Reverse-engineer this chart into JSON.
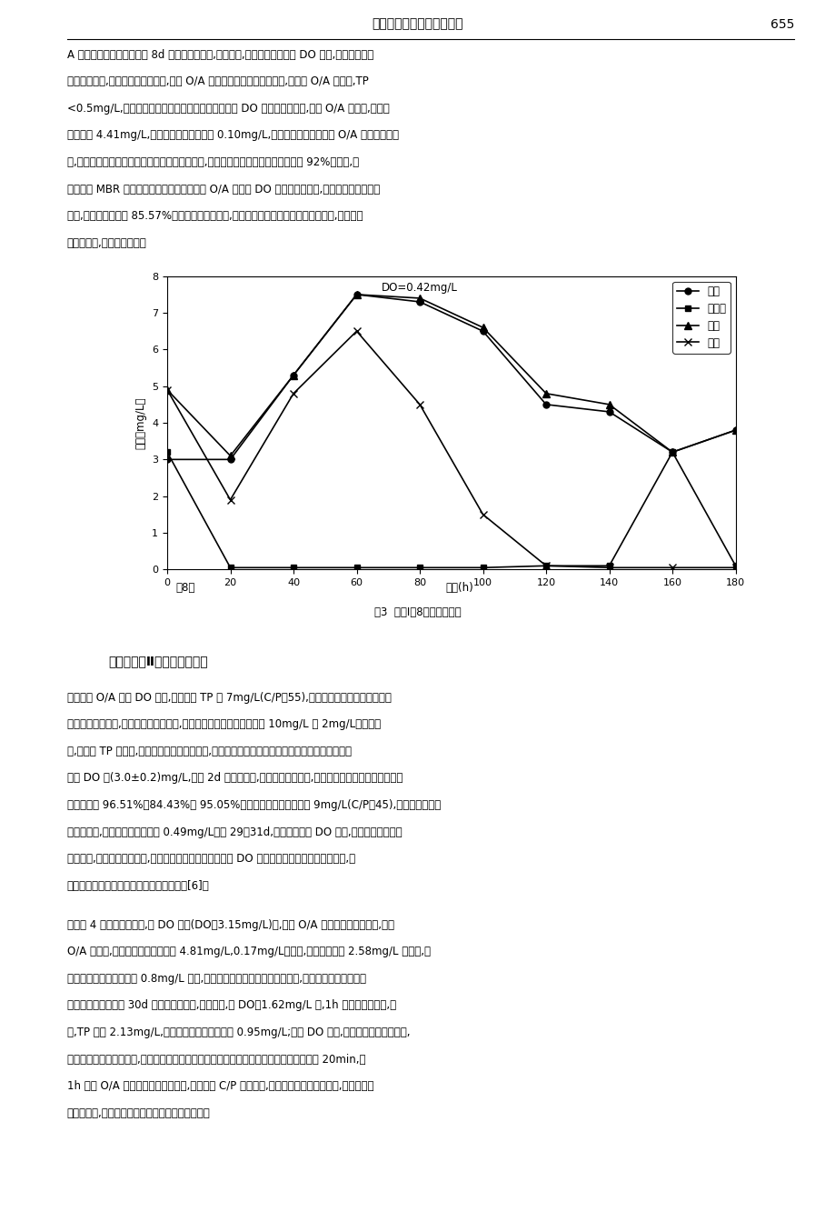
{
  "title_header": "生态、环境科学与工程技术",
  "page_number": "655",
  "fig_caption": "图3  阶段Ⅰ第8天的周期试验",
  "xlabel": "时间(h)",
  "xlabel_left": "第8天",
  "ylabel": "浓度（mg/L）",
  "annotation": "DO=0.42mg/L",
  "ylim": [
    0,
    8
  ],
  "xlim": [
    0,
    180
  ],
  "xticks": [
    0,
    20,
    40,
    60,
    80,
    100,
    120,
    140,
    160,
    180
  ],
  "yticks": [
    0,
    1,
    2,
    3,
    4,
    5,
    6,
    7,
    8
  ],
  "legend_labels": [
    "氨氮",
    "硝态氮",
    "总氮",
    "总磷"
  ],
  "series": {
    "ammonia": {
      "x": [
        0,
        20,
        40,
        60,
        80,
        100,
        120,
        140,
        160,
        180
      ],
      "y": [
        3.0,
        3.0,
        5.3,
        7.5,
        7.3,
        6.5,
        4.5,
        4.3,
        3.2,
        3.8
      ],
      "marker": "o",
      "linestyle": "-",
      "color": "#000000",
      "label": "氨氮"
    },
    "nitrate": {
      "x": [
        0,
        20,
        40,
        60,
        80,
        100,
        120,
        140,
        160,
        180
      ],
      "y": [
        3.2,
        0.05,
        0.05,
        0.05,
        0.05,
        0.05,
        0.1,
        0.1,
        3.2,
        0.1
      ],
      "marker": "s",
      "linestyle": "-",
      "color": "#000000",
      "label": "硝态氮"
    },
    "total_nitrogen": {
      "x": [
        0,
        20,
        40,
        60,
        80,
        100,
        120,
        140,
        160,
        180
      ],
      "y": [
        4.9,
        3.1,
        5.3,
        7.5,
        7.4,
        6.6,
        4.8,
        4.5,
        3.2,
        3.8
      ],
      "marker": "^",
      "linestyle": "-",
      "color": "#000000",
      "label": "总氮"
    },
    "total_phosphorus": {
      "x": [
        0,
        20,
        40,
        60,
        80,
        100,
        120,
        140,
        160,
        180
      ],
      "y": [
        4.9,
        1.9,
        4.8,
        6.5,
        4.5,
        1.5,
        0.1,
        0.05,
        0.05,
        0.05
      ],
      "marker": "x",
      "linestyle": "-",
      "color": "#000000",
      "label": "总磷"
    }
  },
  "paragraph1": "A 标准。在系统稳定运行第 8d 进行了周期试验,结果表明,该工况整个过程的 DO 较低,保证厌氧段的",
  "paragraph2": "释磷进行完全,在碳源充足的情况下,交替 O/A 段仍是系统除磷的关键环节,当交替 O/A 结束时,TP",
  "paragraph3": "<0.5mg/L,好氧出水段对磷基本没有去除。但较低的 DO 影响了硝化反应,交替 O/A 结束时,氨氮浓",
  "paragraph4": "度仅降至 4.41mg/L,好氧出水结束时则达到 0.10mg/L,故溶解氧不足造成交替 O/A 脱氨氮效率下",
  "paragraph5": "降,系统中还有一部分的氨氮在膜出水阶段去除的,这也是出水氨氮的去除率仅能达到 92%的原因,低",
  "paragraph6": "于传统的 MBR 对氨氮的去除效率。尽管交替 O/A 段的低 DO 影响了硝化反应,但对脱除总氮的影响",
  "paragraph7": "较小,总氮效率可达到 85.57%。这是因为碳源充足,在整个周期能保证硝化完全的前提下,系统反硝",
  "paragraph8": "化较为彻底,总氮去除较好。",
  "section_heading": "（二）阶段Ⅱ高磷的处理效果",
  "para2_1": "维持交替 O/A 段的 DO 不变,提高进水 TP 为 7mg/L(C/P＝55),考察系统在低氧条件下对的除",
  "para2_2": "磷效果。研究发现,氨磷出水均出现恶化,氨氮和总磷出水浓度分别超过 10mg/L 和 2mg/L。结果表",
  "para2_3": "明,当进水 TP 较高时,若溶解氧维持较低的水平,系统不能较好实现硝化和好氧摄磷。此时提高曝气",
  "para2_4": "段的 DO 至(3.0±0.2)mg/L,系统 2d 后稳定运行,处理效果迅速恢复,此时氨氮、总氮、总磷的平均去",
  "para2_5": "除率分别为 96.51%、84.43%和 95.05%。继续提高进水磷浓度至 9mg/L(C/P＝45),氨磷的去除率基",
  "para2_6": "本保持不变,出水总磷平均浓度为 0.49mg/L。在 29～31d,由于曝气段的 DO 降低,氨磷的处理效果又",
  "para2_7": "出现波动,恢复溶解氧浓度后,去除率也随之回升。曝气段的 DO 浓度会影响好氧区的磷吸收速率,只",
  "para2_8": "有保证足够的好氧时间才不会影响磷的去除[6]。",
  "para3_1": "通过图 4 的周期实验发现,在 DO 充足(DO＝3.15mg/L)时,交替 O/A 段脱氨除磷效果显著,交替",
  "para3_2": "O/A 结束时,总氮、总磷浓度分别为 4.81mg/L,0.17mg/L。此时,系统中虽残余 2.58mg/L 的氨氮,但",
  "para3_3": "出水却能保证氨氮浓度在 0.8mg/L 左右,处理效果稳定。而当溶解氧降低后,氨磷的出水很快出现不",
  "para3_4": "同程度的恶化。对第 30d 进行了追踪测定,试验发现,当 DO＝1.62mg/L 时,1h 的吸磷略有不足,此",
  "para3_5": "时,TP 达到 2.13mg/L,通过后续膜出水最终降至 0.95mg/L;然而 DO 不足,对去除总氮的影响较大,",
  "para3_6": "主要是硝化反应受到限制,系统后续反硝化难以进行。去除氨氮的时间主要集中在进水的前 20min,使",
  "para3_7": "1h 交替 O/A 脱氨失效。对于本工艺,在一定的 C/P 比范围内,若要达到预期的处理效果,势必保持溶",
  "para3_8": "解氧的充足,否则将严重制约系统的脱氨除磷效果。"
}
